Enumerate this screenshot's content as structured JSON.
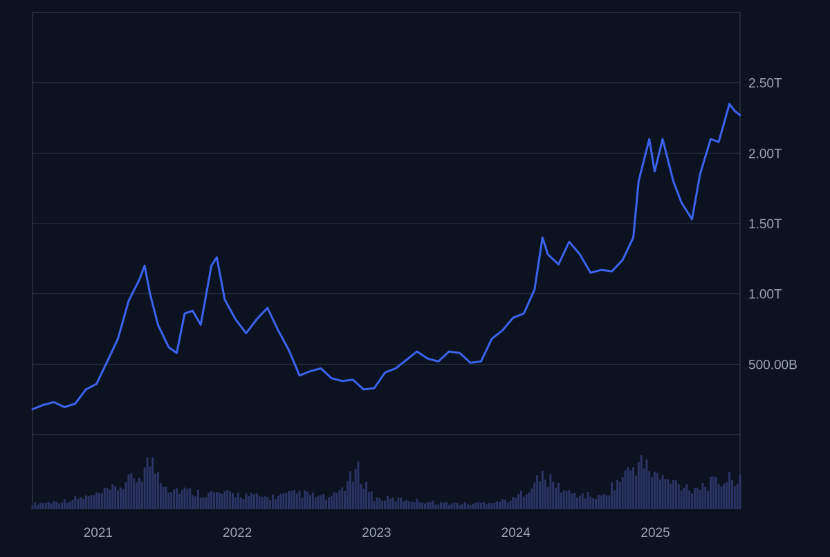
{
  "colors": {
    "background": "#0b1220",
    "frame": "#3a4253",
    "grid": "#2c3444",
    "line": "#3d62ee",
    "volume": "#2a3566",
    "label": "#9aa3b5"
  },
  "chart_data": {
    "type": "line",
    "title": "",
    "xlabel": "",
    "ylabel": "",
    "x_ticks": [
      "2021",
      "2022",
      "2023",
      "2024",
      "2025"
    ],
    "y_ticks": [
      {
        "value": 500,
        "label": "500.00B"
      },
      {
        "value": 1000,
        "label": "1.00T"
      },
      {
        "value": 1500,
        "label": "1.50T"
      },
      {
        "value": 2000,
        "label": "2.00T"
      },
      {
        "value": 2500,
        "label": "2.50T"
      }
    ],
    "y_unit": "billions",
    "ylim": [
      0,
      3000
    ],
    "xlim": [
      "2020-07-13",
      "2025-08-11"
    ],
    "y_axis_position": "right",
    "grid": true,
    "series": [
      {
        "values": [
          [
            "2020-07-13",
            180
          ],
          [
            "2020-08-10",
            210
          ],
          [
            "2020-09-07",
            230
          ],
          [
            "2020-10-05",
            195
          ],
          [
            "2020-11-02",
            220
          ],
          [
            "2020-11-30",
            320
          ],
          [
            "2020-12-28",
            360
          ],
          [
            "2021-01-25",
            520
          ],
          [
            "2021-02-22",
            680
          ],
          [
            "2021-03-22",
            950
          ],
          [
            "2021-04-19",
            1100
          ],
          [
            "2021-05-03",
            1200
          ],
          [
            "2021-05-17",
            1000
          ],
          [
            "2021-06-07",
            780
          ],
          [
            "2021-07-05",
            620
          ],
          [
            "2021-07-26",
            580
          ],
          [
            "2021-08-16",
            860
          ],
          [
            "2021-09-06",
            880
          ],
          [
            "2021-09-27",
            780
          ],
          [
            "2021-10-25",
            1200
          ],
          [
            "2021-11-08",
            1260
          ],
          [
            "2021-11-29",
            960
          ],
          [
            "2021-12-27",
            820
          ],
          [
            "2022-01-24",
            720
          ],
          [
            "2022-02-21",
            820
          ],
          [
            "2022-03-21",
            900
          ],
          [
            "2022-04-18",
            740
          ],
          [
            "2022-05-16",
            600
          ],
          [
            "2022-06-13",
            420
          ],
          [
            "2022-07-11",
            450
          ],
          [
            "2022-08-08",
            470
          ],
          [
            "2022-09-05",
            400
          ],
          [
            "2022-10-03",
            380
          ],
          [
            "2022-10-31",
            390
          ],
          [
            "2022-11-28",
            320
          ],
          [
            "2022-12-26",
            330
          ],
          [
            "2023-01-23",
            440
          ],
          [
            "2023-02-20",
            470
          ],
          [
            "2023-03-20",
            530
          ],
          [
            "2023-04-17",
            590
          ],
          [
            "2023-05-15",
            540
          ],
          [
            "2023-06-12",
            520
          ],
          [
            "2023-07-10",
            590
          ],
          [
            "2023-08-07",
            580
          ],
          [
            "2023-09-04",
            510
          ],
          [
            "2023-10-02",
            520
          ],
          [
            "2023-10-30",
            680
          ],
          [
            "2023-11-27",
            740
          ],
          [
            "2023-12-25",
            830
          ],
          [
            "2024-01-22",
            860
          ],
          [
            "2024-02-19",
            1030
          ],
          [
            "2024-03-11",
            1400
          ],
          [
            "2024-03-25",
            1280
          ],
          [
            "2024-04-22",
            1210
          ],
          [
            "2024-05-20",
            1370
          ],
          [
            "2024-06-17",
            1280
          ],
          [
            "2024-07-15",
            1150
          ],
          [
            "2024-08-12",
            1170
          ],
          [
            "2024-09-09",
            1160
          ],
          [
            "2024-10-07",
            1240
          ],
          [
            "2024-11-04",
            1400
          ],
          [
            "2024-11-18",
            1800
          ],
          [
            "2024-12-16",
            2100
          ],
          [
            "2024-12-30",
            1870
          ],
          [
            "2025-01-20",
            2100
          ],
          [
            "2025-02-17",
            1800
          ],
          [
            "2025-03-10",
            1650
          ],
          [
            "2025-04-07",
            1530
          ],
          [
            "2025-04-28",
            1850
          ],
          [
            "2025-05-26",
            2100
          ],
          [
            "2025-06-16",
            2080
          ],
          [
            "2025-07-14",
            2350
          ],
          [
            "2025-07-28",
            2300
          ],
          [
            "2025-08-11",
            2270
          ]
        ]
      }
    ],
    "volume": {
      "ylim": [
        0,
        100
      ],
      "values": [
        [
          "2020-07-13",
          10
        ],
        [
          "2020-10-05",
          16
        ],
        [
          "2020-12-28",
          26
        ],
        [
          "2021-02-22",
          40
        ],
        [
          "2021-04-19",
          62
        ],
        [
          "2021-05-17",
          90
        ],
        [
          "2021-07-05",
          40
        ],
        [
          "2021-09-27",
          30
        ],
        [
          "2021-12-27",
          28
        ],
        [
          "2022-03-21",
          22
        ],
        [
          "2022-06-13",
          30
        ],
        [
          "2022-09-05",
          20
        ],
        [
          "2022-11-14",
          70
        ],
        [
          "2022-12-26",
          20
        ],
        [
          "2023-03-20",
          18
        ],
        [
          "2023-06-12",
          12
        ],
        [
          "2023-09-04",
          10
        ],
        [
          "2023-12-25",
          18
        ],
        [
          "2024-03-11",
          60
        ],
        [
          "2024-05-20",
          30
        ],
        [
          "2024-08-12",
          22
        ],
        [
          "2024-11-18",
          88
        ],
        [
          "2025-01-20",
          55
        ],
        [
          "2025-04-07",
          40
        ],
        [
          "2025-07-14",
          55
        ],
        [
          "2025-08-11",
          65
        ]
      ]
    }
  }
}
